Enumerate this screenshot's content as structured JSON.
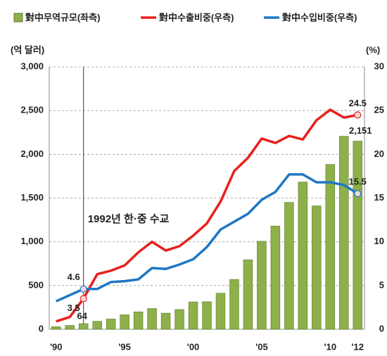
{
  "chart_data": {
    "type": "bar_line",
    "y_label": "(억 달러)",
    "y2_label": "(%)",
    "annotation": "1992년 한·중 수교",
    "categories": [
      "'90",
      null,
      null,
      null,
      null,
      "'95",
      null,
      null,
      null,
      null,
      "'00",
      null,
      null,
      null,
      null,
      "'05",
      null,
      null,
      null,
      null,
      "'10",
      null,
      "'12"
    ],
    "series": [
      {
        "name": "對中무역규모(좌측)",
        "kind": "bar",
        "axis": "y",
        "color": "#8db04a",
        "values": [
          29,
          44,
          64,
          91,
          117,
          165,
          199,
          237,
          184,
          226,
          313,
          315,
          412,
          570,
          794,
          1006,
          1180,
          1450,
          1683,
          1410,
          1884,
          2206,
          2151
        ],
        "value_labels": [
          null,
          null,
          "64",
          null,
          null,
          null,
          null,
          null,
          null,
          null,
          null,
          null,
          null,
          null,
          null,
          null,
          null,
          null,
          null,
          null,
          null,
          null,
          "2,151"
        ]
      },
      {
        "name": "對中수출비중(우측)",
        "kind": "line",
        "axis": "y2",
        "color": "#e8201c",
        "values": [
          0.9,
          1.4,
          3.5,
          6.3,
          6.7,
          7.3,
          8.8,
          10.0,
          9.0,
          9.5,
          10.7,
          12.1,
          14.6,
          18.1,
          19.6,
          21.8,
          21.3,
          22.1,
          21.7,
          23.9,
          25.1,
          24.2,
          24.5
        ],
        "value_labels": [
          null,
          null,
          "3.5",
          null,
          null,
          null,
          null,
          null,
          null,
          null,
          null,
          null,
          null,
          null,
          null,
          null,
          null,
          null,
          null,
          null,
          null,
          null,
          "24.5"
        ]
      },
      {
        "name": "對中수입비중(우측)",
        "kind": "line",
        "axis": "y2",
        "color": "#1f77c4",
        "values": [
          3.2,
          3.9,
          4.6,
          4.6,
          5.4,
          5.5,
          5.7,
          7.0,
          6.9,
          7.4,
          8.0,
          9.4,
          11.4,
          12.3,
          13.2,
          14.8,
          15.7,
          17.7,
          17.7,
          16.8,
          16.8,
          16.5,
          15.5
        ],
        "value_labels": [
          null,
          null,
          "4.6",
          null,
          null,
          null,
          null,
          null,
          null,
          null,
          null,
          null,
          null,
          null,
          null,
          null,
          null,
          null,
          null,
          null,
          null,
          null,
          "15.5"
        ]
      }
    ],
    "ylim": [
      0,
      3000
    ],
    "yticks": [
      0,
      500,
      {
        "value": 1000,
        "label": "1,000"
      },
      {
        "value": 1500,
        "label": "1,500"
      },
      {
        "value": 2000,
        "label": "2,000"
      },
      {
        "value": 2500,
        "label": "2,500"
      },
      {
        "value": 3000,
        "label": "3,000"
      }
    ],
    "y2lim": [
      0,
      30
    ],
    "y2ticks": [
      0,
      5,
      10,
      15,
      20,
      25,
      30
    ],
    "grid": true
  }
}
